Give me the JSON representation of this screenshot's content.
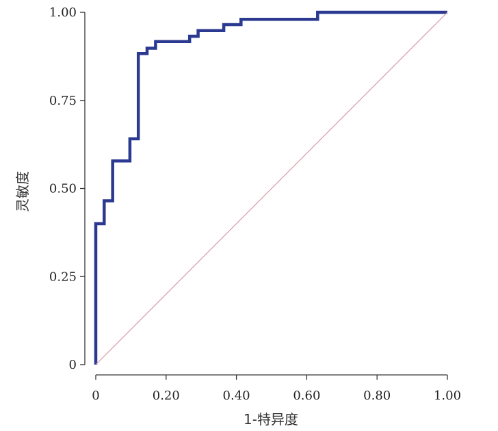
{
  "chart_data": {
    "type": "line",
    "title": "",
    "xlabel": "1-特异度",
    "ylabel": "灵敏度",
    "xlim": [
      0,
      1
    ],
    "ylim": [
      0,
      1
    ],
    "x_ticks": [
      {
        "value": 0,
        "label": "0"
      },
      {
        "value": 0.2,
        "label": "0.20"
      },
      {
        "value": 0.4,
        "label": "0.40"
      },
      {
        "value": 0.6,
        "label": "0.60"
      },
      {
        "value": 0.8,
        "label": "0.80"
      },
      {
        "value": 1.0,
        "label": "1.00"
      }
    ],
    "y_ticks": [
      {
        "value": 0,
        "label": "0"
      },
      {
        "value": 0.25,
        "label": "0.25"
      },
      {
        "value": 0.5,
        "label": "0.50"
      },
      {
        "value": 0.75,
        "label": "0.75"
      },
      {
        "value": 1.0,
        "label": "1.00"
      }
    ],
    "series": [
      {
        "style": "step",
        "color": "#2b3990",
        "points": [
          [
            0,
            0
          ],
          [
            0,
            0.4
          ],
          [
            0.024,
            0.4
          ],
          [
            0.024,
            0.465
          ],
          [
            0.048,
            0.465
          ],
          [
            0.048,
            0.578
          ],
          [
            0.097,
            0.578
          ],
          [
            0.097,
            0.641
          ],
          [
            0.121,
            0.641
          ],
          [
            0.121,
            0.883
          ],
          [
            0.146,
            0.883
          ],
          [
            0.146,
            0.898
          ],
          [
            0.17,
            0.898
          ],
          [
            0.17,
            0.917
          ],
          [
            0.267,
            0.917
          ],
          [
            0.267,
            0.932
          ],
          [
            0.291,
            0.932
          ],
          [
            0.291,
            0.948
          ],
          [
            0.364,
            0.948
          ],
          [
            0.364,
            0.965
          ],
          [
            0.413,
            0.965
          ],
          [
            0.413,
            0.98
          ],
          [
            0.631,
            0.98
          ],
          [
            0.631,
            1.0
          ],
          [
            1.0,
            1.0
          ]
        ]
      },
      {
        "style": "reference",
        "color": "#d89aa8",
        "points": [
          [
            0,
            0
          ],
          [
            1,
            1
          ]
        ]
      }
    ],
    "grid": false,
    "legend": "none"
  }
}
